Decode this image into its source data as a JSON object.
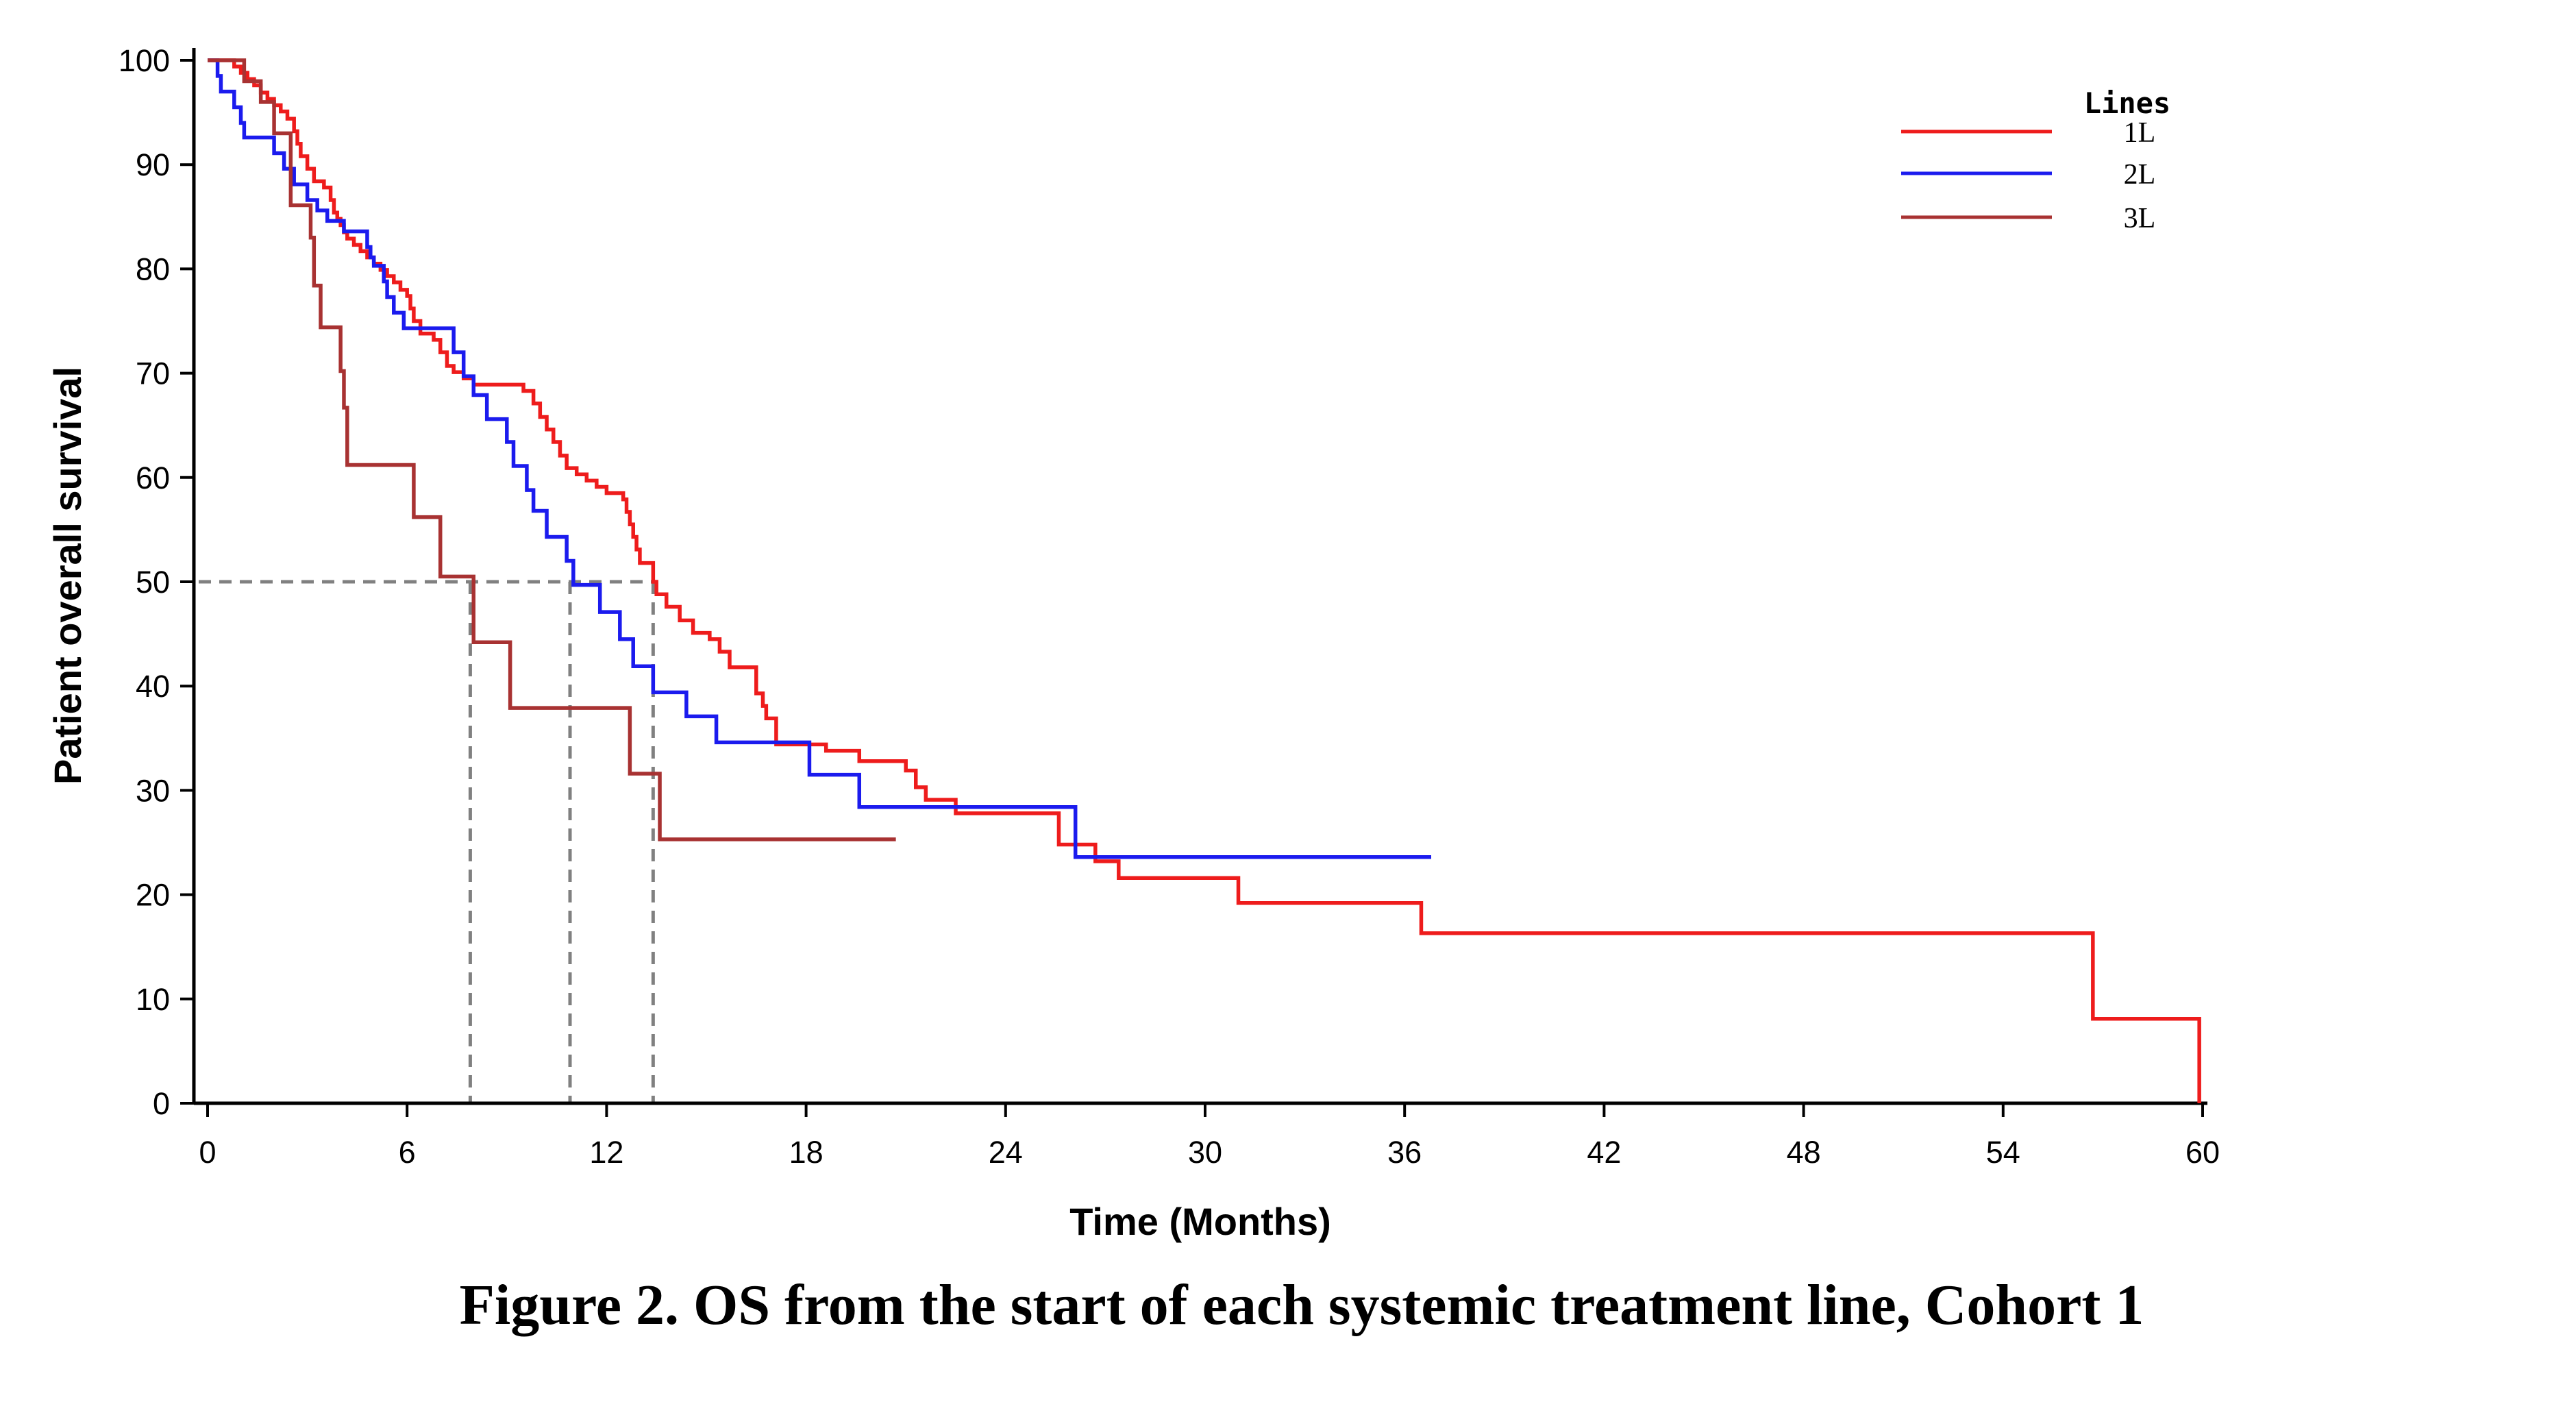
{
  "chart_data": {
    "type": "line",
    "title": "",
    "xlabel": "Time (Months)",
    "ylabel": "Patient overall survival",
    "xlim": [
      0,
      60
    ],
    "ylim": [
      0,
      100
    ],
    "xticks": [
      0,
      6,
      12,
      18,
      24,
      30,
      36,
      42,
      48,
      54,
      60
    ],
    "yticks": [
      0,
      10,
      20,
      30,
      40,
      50,
      60,
      70,
      80,
      90,
      100
    ],
    "grid": false,
    "legend": {
      "title": "Lines",
      "placement": "top-right"
    },
    "median_reference_y": 50,
    "medians_x": [
      7.9,
      10.9,
      13.4
    ],
    "series": [
      {
        "name": "1L",
        "color": "#ee1c1c",
        "step": true,
        "points": [
          [
            0,
            100
          ],
          [
            0.8,
            99.4
          ],
          [
            1.0,
            98.8
          ],
          [
            1.2,
            98.2
          ],
          [
            1.4,
            97.6
          ],
          [
            1.6,
            96.9
          ],
          [
            1.8,
            96.3
          ],
          [
            2.0,
            95.7
          ],
          [
            2.2,
            95.1
          ],
          [
            2.4,
            94.4
          ],
          [
            2.6,
            93.2
          ],
          [
            2.7,
            92.0
          ],
          [
            2.8,
            90.8
          ],
          [
            3.0,
            89.6
          ],
          [
            3.2,
            88.4
          ],
          [
            3.5,
            87.8
          ],
          [
            3.7,
            86.6
          ],
          [
            3.8,
            85.4
          ],
          [
            3.9,
            84.8
          ],
          [
            4.0,
            84.2
          ],
          [
            4.1,
            83.5
          ],
          [
            4.2,
            82.9
          ],
          [
            4.4,
            82.3
          ],
          [
            4.6,
            81.7
          ],
          [
            4.8,
            81.1
          ],
          [
            5.0,
            80.5
          ],
          [
            5.2,
            79.9
          ],
          [
            5.4,
            79.3
          ],
          [
            5.6,
            78.7
          ],
          [
            5.8,
            78.0
          ],
          [
            6.0,
            77.4
          ],
          [
            6.1,
            76.2
          ],
          [
            6.2,
            75.0
          ],
          [
            6.4,
            73.8
          ],
          [
            6.8,
            73.2
          ],
          [
            7.0,
            72.0
          ],
          [
            7.2,
            70.7
          ],
          [
            7.4,
            70.1
          ],
          [
            7.7,
            69.5
          ],
          [
            8.0,
            68.9
          ],
          [
            8.6,
            68.9
          ],
          [
            9.5,
            68.3
          ],
          [
            9.8,
            67.1
          ],
          [
            10.0,
            65.8
          ],
          [
            10.2,
            64.6
          ],
          [
            10.4,
            63.4
          ],
          [
            10.6,
            62.1
          ],
          [
            10.8,
            60.9
          ],
          [
            11.1,
            60.3
          ],
          [
            11.4,
            59.7
          ],
          [
            11.7,
            59.1
          ],
          [
            12.0,
            58.5
          ],
          [
            12.5,
            57.9
          ],
          [
            12.6,
            56.7
          ],
          [
            12.7,
            55.5
          ],
          [
            12.8,
            54.3
          ],
          [
            12.9,
            53.1
          ],
          [
            13.0,
            51.8
          ],
          [
            13.4,
            50.0
          ],
          [
            13.5,
            48.8
          ],
          [
            13.8,
            47.6
          ],
          [
            14.2,
            46.3
          ],
          [
            14.6,
            45.1
          ],
          [
            15.1,
            44.5
          ],
          [
            15.4,
            43.3
          ],
          [
            15.7,
            41.8
          ],
          [
            16.5,
            39.3
          ],
          [
            16.7,
            38.1
          ],
          [
            16.8,
            36.9
          ],
          [
            17.1,
            34.4
          ],
          [
            18.6,
            33.8
          ],
          [
            19.6,
            32.8
          ],
          [
            21.0,
            31.9
          ],
          [
            21.3,
            30.3
          ],
          [
            21.6,
            29.1
          ],
          [
            22.5,
            27.8
          ],
          [
            25.6,
            24.8
          ],
          [
            26.7,
            23.2
          ],
          [
            27.4,
            21.6
          ],
          [
            31.0,
            19.2
          ],
          [
            36.5,
            16.3
          ],
          [
            56.7,
            8.1
          ],
          [
            59.9,
            0
          ]
        ]
      },
      {
        "name": "2L",
        "color": "#1b1bee",
        "step": true,
        "points": [
          [
            0,
            100
          ],
          [
            0.3,
            98.5
          ],
          [
            0.4,
            97.0
          ],
          [
            0.8,
            95.5
          ],
          [
            1.0,
            94.0
          ],
          [
            1.1,
            92.6
          ],
          [
            2.0,
            91.1
          ],
          [
            2.3,
            89.6
          ],
          [
            2.6,
            88.1
          ],
          [
            3.0,
            86.6
          ],
          [
            3.3,
            85.6
          ],
          [
            3.6,
            84.6
          ],
          [
            4.1,
            83.6
          ],
          [
            4.8,
            82.1
          ],
          [
            4.9,
            81.1
          ],
          [
            5.0,
            80.3
          ],
          [
            5.3,
            78.8
          ],
          [
            5.4,
            77.3
          ],
          [
            5.6,
            75.8
          ],
          [
            5.9,
            74.3
          ],
          [
            7.4,
            72.0
          ],
          [
            7.7,
            69.7
          ],
          [
            8.0,
            67.9
          ],
          [
            8.4,
            65.6
          ],
          [
            9.0,
            63.4
          ],
          [
            9.2,
            61.1
          ],
          [
            9.6,
            58.8
          ],
          [
            9.8,
            56.8
          ],
          [
            10.2,
            54.3
          ],
          [
            10.8,
            52.0
          ],
          [
            11.0,
            49.7
          ],
          [
            11.8,
            47.1
          ],
          [
            12.4,
            44.5
          ],
          [
            12.8,
            41.9
          ],
          [
            13.4,
            39.4
          ],
          [
            14.4,
            37.1
          ],
          [
            15.3,
            34.6
          ],
          [
            18.1,
            31.5
          ],
          [
            19.6,
            28.4
          ],
          [
            26.1,
            23.6
          ],
          [
            36.8,
            23.6
          ]
        ]
      },
      {
        "name": "3L",
        "color": "#a83232",
        "step": true,
        "points": [
          [
            0,
            100
          ],
          [
            1.1,
            98.0
          ],
          [
            1.6,
            96.0
          ],
          [
            2.0,
            93.0
          ],
          [
            2.5,
            86.1
          ],
          [
            3.1,
            83.0
          ],
          [
            3.2,
            78.4
          ],
          [
            3.4,
            74.4
          ],
          [
            4.0,
            70.2
          ],
          [
            4.1,
            66.7
          ],
          [
            4.2,
            61.2
          ],
          [
            6.2,
            56.2
          ],
          [
            7.0,
            50.5
          ],
          [
            8.0,
            44.2
          ],
          [
            9.1,
            37.9
          ],
          [
            12.7,
            31.6
          ],
          [
            13.6,
            25.3
          ],
          [
            20.7,
            25.3
          ]
        ]
      }
    ]
  },
  "caption": "Figure 2. OS from the start of each systemic treatment line, Cohort 1"
}
